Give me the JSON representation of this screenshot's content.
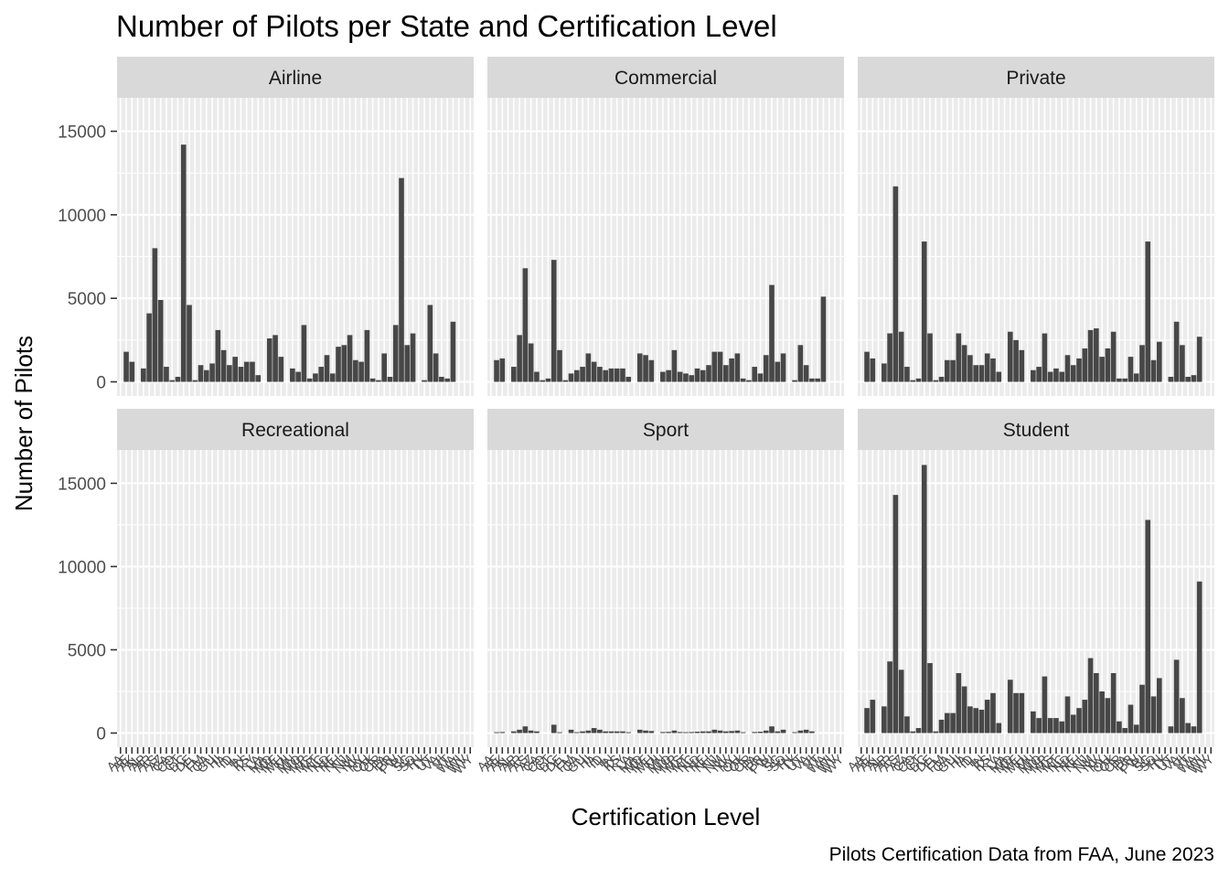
{
  "chart_data": {
    "type": "bar",
    "title": "Number of Pilots per State and Certification Level",
    "xlabel": "Certification Level",
    "ylabel": "Number of Pilots",
    "caption": "Pilots Certification Data from FAA, June 2023",
    "ylim": [
      0,
      17000
    ],
    "yticks": [
      0,
      5000,
      10000,
      15000
    ],
    "facet_layout": "2 rows x 3 columns",
    "grid": true,
    "bar_color": "#474747",
    "panel_background": "#ebebeb",
    "strip_background": "#d9d9d9",
    "categories": [
      "AA",
      "AE",
      "AK",
      "AL",
      "AP",
      "AR",
      "AS",
      "AZ",
      "CA",
      "CO",
      "CT",
      "DC",
      "DE",
      "FL",
      "FM",
      "GA",
      "GU",
      "HI",
      "IA",
      "ID",
      "IL",
      "IN",
      "KS",
      "KY",
      "LA",
      "MA",
      "MD",
      "ME",
      "MH",
      "MI",
      "MN",
      "MO",
      "MP",
      "MS",
      "MT",
      "NC",
      "ND",
      "NE",
      "NH",
      "NJ",
      "NM",
      "NV",
      "NY",
      "OH",
      "OK",
      "OR",
      "PA",
      "PR",
      "PW",
      "RI",
      "SC",
      "SD",
      "TN",
      "TX",
      "UT",
      "VA",
      "VI",
      "VT",
      "WA",
      "WI",
      "WV",
      "WY"
    ],
    "facets": [
      {
        "name": "Airline",
        "values": [
          0,
          1800,
          1200,
          0,
          800,
          4100,
          8000,
          4900,
          900,
          100,
          300,
          14200,
          4600,
          100,
          1000,
          700,
          1100,
          3100,
          1900,
          1000,
          1500,
          900,
          1200,
          1200,
          400,
          0,
          2600,
          2800,
          1500,
          0,
          800,
          600,
          3400,
          200,
          500,
          900,
          1600,
          500,
          2100,
          2200,
          2800,
          1300,
          1200,
          3100,
          200,
          100,
          1700,
          300,
          3400,
          12200,
          2200,
          2900,
          0,
          100,
          4600,
          1700,
          300,
          200,
          3600,
          0,
          0,
          0
        ]
      },
      {
        "name": "Commercial",
        "values": [
          0,
          1300,
          1400,
          0,
          900,
          2800,
          6800,
          2300,
          600,
          100,
          200,
          7300,
          1900,
          100,
          500,
          700,
          900,
          1700,
          1200,
          900,
          700,
          800,
          800,
          800,
          300,
          0,
          1700,
          1600,
          1300,
          0,
          600,
          700,
          1900,
          600,
          500,
          400,
          800,
          700,
          1000,
          1800,
          1800,
          1000,
          1400,
          1700,
          200,
          100,
          900,
          500,
          1600,
          5800,
          1200,
          1700,
          0,
          100,
          2200,
          1000,
          200,
          200,
          5100,
          0,
          0,
          0
        ]
      },
      {
        "name": "Private",
        "values": [
          0,
          1800,
          1400,
          0,
          1100,
          2900,
          11700,
          3000,
          900,
          100,
          200,
          8400,
          2900,
          100,
          300,
          1300,
          1300,
          2900,
          2200,
          1600,
          1000,
          1000,
          1700,
          1400,
          600,
          0,
          3000,
          2500,
          1900,
          0,
          700,
          900,
          2900,
          600,
          800,
          600,
          1600,
          1000,
          1400,
          2000,
          3100,
          3200,
          1500,
          2000,
          3000,
          200,
          200,
          1500,
          500,
          2200,
          8400,
          1300,
          2400,
          0,
          300,
          3600,
          2200,
          300,
          400,
          2700,
          0,
          0
        ]
      },
      {
        "name": "Recreational",
        "values": [
          0,
          0,
          0,
          0,
          0,
          0,
          0,
          0,
          0,
          0,
          0,
          0,
          0,
          0,
          0,
          0,
          0,
          0,
          0,
          0,
          0,
          0,
          0,
          0,
          0,
          0,
          0,
          0,
          0,
          0,
          0,
          0,
          0,
          0,
          0,
          0,
          0,
          0,
          0,
          0,
          0,
          0,
          0,
          0,
          0,
          0,
          0,
          0,
          0,
          0,
          0,
          0,
          0,
          0,
          0,
          0,
          0,
          0,
          0,
          0,
          0,
          0
        ]
      },
      {
        "name": "Sport",
        "values": [
          0,
          50,
          60,
          0,
          100,
          200,
          400,
          150,
          100,
          0,
          0,
          500,
          50,
          0,
          200,
          50,
          100,
          150,
          300,
          200,
          100,
          100,
          100,
          100,
          50,
          0,
          200,
          150,
          120,
          0,
          60,
          70,
          150,
          60,
          50,
          60,
          80,
          100,
          100,
          200,
          150,
          100,
          120,
          150,
          50,
          0,
          60,
          80,
          150,
          400,
          100,
          200,
          0,
          50,
          150,
          200,
          100,
          0,
          0,
          0,
          0,
          0
        ]
      },
      {
        "name": "Student",
        "values": [
          0,
          1500,
          2000,
          0,
          1600,
          4300,
          14300,
          3800,
          1000,
          100,
          300,
          16100,
          4200,
          100,
          800,
          1200,
          1200,
          3600,
          2800,
          1600,
          1500,
          1400,
          2000,
          2400,
          600,
          0,
          3200,
          2400,
          2400,
          0,
          1300,
          900,
          3400,
          900,
          900,
          700,
          2200,
          1100,
          1500,
          2000,
          4500,
          3600,
          2500,
          2100,
          3600,
          700,
          300,
          1700,
          500,
          2900,
          12800,
          2200,
          3300,
          0,
          400,
          4400,
          2100,
          600,
          400,
          9100,
          0,
          0
        ]
      }
    ]
  }
}
